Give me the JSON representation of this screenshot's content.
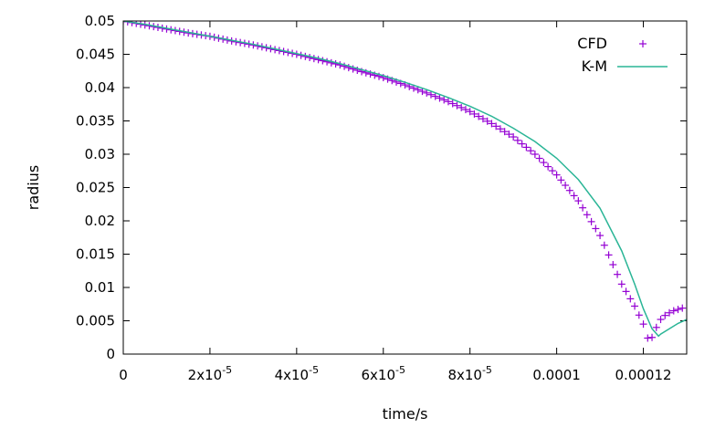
{
  "chart_data": {
    "type": "scatter",
    "title": "",
    "xlabel": "time/s",
    "ylabel": "radius",
    "xlim": [
      0,
      0.00013
    ],
    "ylim": [
      0,
      0.05
    ],
    "grid": false,
    "legend_position": "top-right",
    "x_ticks": [
      {
        "value": 0,
        "label": "0"
      },
      {
        "value": 2e-05,
        "label": "2x10",
        "sup": "-5"
      },
      {
        "value": 4e-05,
        "label": "4x10",
        "sup": "-5"
      },
      {
        "value": 6e-05,
        "label": "6x10",
        "sup": "-5"
      },
      {
        "value": 8e-05,
        "label": "8x10",
        "sup": "-5"
      },
      {
        "value": 0.0001,
        "label": "0.0001"
      },
      {
        "value": 0.00012,
        "label": "0.00012"
      }
    ],
    "y_ticks": [
      {
        "value": 0,
        "label": "0"
      },
      {
        "value": 0.005,
        "label": "0.005"
      },
      {
        "value": 0.01,
        "label": "0.01"
      },
      {
        "value": 0.015,
        "label": "0.015"
      },
      {
        "value": 0.02,
        "label": "0.02"
      },
      {
        "value": 0.025,
        "label": "0.025"
      },
      {
        "value": 0.03,
        "label": "0.03"
      },
      {
        "value": 0.035,
        "label": "0.035"
      },
      {
        "value": 0.04,
        "label": "0.04"
      },
      {
        "value": 0.045,
        "label": "0.045"
      },
      {
        "value": 0.05,
        "label": "0.05"
      }
    ],
    "series": [
      {
        "name": "CFD",
        "style": "points-plus",
        "color": "#9400d3",
        "x": [
          0,
          5e-06,
          1e-05,
          1.5e-05,
          2e-05,
          2.5e-05,
          3e-05,
          3.5e-05,
          4e-05,
          4.5e-05,
          5e-05,
          5.5e-05,
          6e-05,
          6.5e-05,
          7e-05,
          7.5e-05,
          8e-05,
          8.5e-05,
          9e-05,
          9.5e-05,
          0.0001,
          0.000105,
          0.00011,
          0.000115,
          0.000118,
          0.00012,
          0.000121,
          0.000122,
          0.000123,
          0.000124,
          0.000125,
          0.000126,
          0.000127,
          0.000128,
          0.000129
        ],
        "y": [
          0.05,
          0.0494,
          0.0488,
          0.0482,
          0.0477,
          0.047,
          0.0464,
          0.0457,
          0.045,
          0.0442,
          0.0434,
          0.0424,
          0.0415,
          0.0404,
          0.0392,
          0.0379,
          0.0364,
          0.0346,
          0.0326,
          0.03,
          0.0269,
          0.023,
          0.0178,
          0.0105,
          0.0072,
          0.0045,
          0.0024,
          0.0025,
          0.004,
          0.0052,
          0.0058,
          0.0062,
          0.0065,
          0.0067,
          0.0069
        ]
      },
      {
        "name": "K-M",
        "style": "line",
        "color": "#2ab596",
        "x": [
          0,
          5e-06,
          1e-05,
          1.5e-05,
          2e-05,
          2.5e-05,
          3e-05,
          3.5e-05,
          4e-05,
          4.5e-05,
          5e-05,
          5.5e-05,
          6e-05,
          6.5e-05,
          7e-05,
          7.5e-05,
          8e-05,
          8.5e-05,
          9e-05,
          9.5e-05,
          0.0001,
          0.000105,
          0.00011,
          0.000115,
          0.000118,
          0.00012,
          0.000122,
          0.0001235,
          0.000124,
          0.000126,
          0.000128,
          0.00013
        ],
        "y": [
          0.05,
          0.0495,
          0.0489,
          0.0483,
          0.0477,
          0.0471,
          0.0465,
          0.0458,
          0.0451,
          0.0444,
          0.0436,
          0.0427,
          0.0418,
          0.0408,
          0.0397,
          0.0385,
          0.0372,
          0.0357,
          0.0339,
          0.0319,
          0.0294,
          0.0262,
          0.0219,
          0.0155,
          0.0105,
          0.0068,
          0.0038,
          0.0027,
          0.003,
          0.0038,
          0.0046,
          0.0052
        ]
      }
    ]
  }
}
